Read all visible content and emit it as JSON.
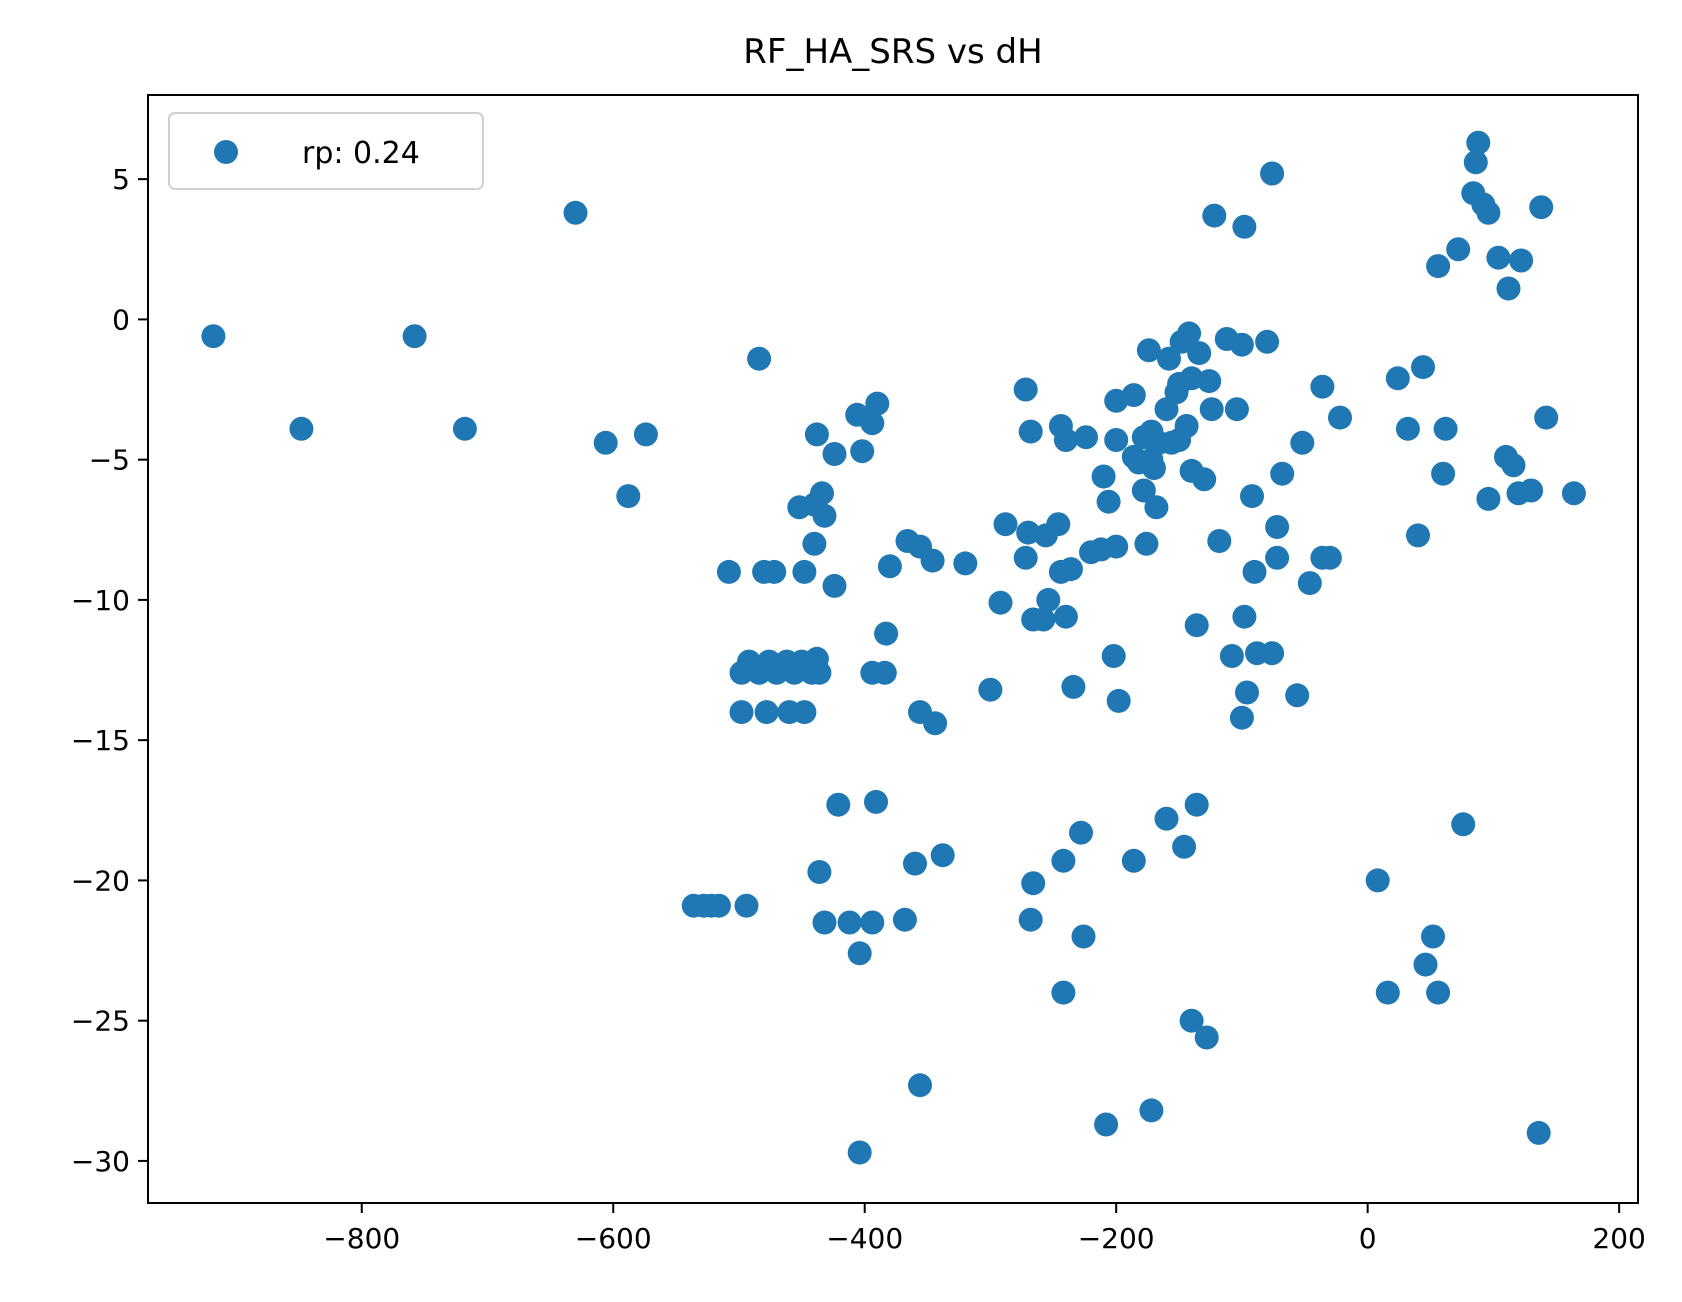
{
  "chart_data": {
    "type": "scatter",
    "title": "RF_HA_SRS vs dH",
    "xlabel": "",
    "ylabel": "",
    "xlim": [
      -970,
      215
    ],
    "ylim": [
      -31.5,
      8.0
    ],
    "xticks": [
      -800,
      -600,
      -400,
      -200,
      0,
      200
    ],
    "xtick_labels": [
      "−800",
      "−600",
      "−400",
      "−200",
      "0",
      "200"
    ],
    "yticks": [
      5,
      0,
      -5,
      -10,
      -15,
      -20,
      -25,
      -30
    ],
    "ytick_labels": [
      "5",
      "0",
      "−5",
      "−10",
      "−15",
      "−20",
      "−25",
      "−30"
    ],
    "grid": false,
    "legend_position": "top-left",
    "series": [
      {
        "name": "rp: 0.24",
        "color": "#1f77b4",
        "points": [
          [
            -918,
            -0.6
          ],
          [
            -848,
            -3.9
          ],
          [
            -758,
            -0.6
          ],
          [
            -718,
            -3.9
          ],
          [
            -630,
            3.8
          ],
          [
            -606,
            -4.4
          ],
          [
            -588,
            -6.3
          ],
          [
            -574,
            -4.1
          ],
          [
            -484,
            -1.4
          ],
          [
            -508,
            -9.0
          ],
          [
            -480,
            -9.0
          ],
          [
            -472,
            -9.0
          ],
          [
            -448,
            -9.0
          ],
          [
            -424,
            -9.5
          ],
          [
            -498,
            -12.6
          ],
          [
            -492,
            -12.2
          ],
          [
            -484,
            -12.6
          ],
          [
            -476,
            -12.2
          ],
          [
            -470,
            -12.6
          ],
          [
            -462,
            -12.2
          ],
          [
            -456,
            -12.6
          ],
          [
            -450,
            -12.2
          ],
          [
            -442,
            -12.6
          ],
          [
            -436,
            -12.6
          ],
          [
            -438,
            -12.1
          ],
          [
            -498,
            -14.0
          ],
          [
            -478,
            -14.0
          ],
          [
            -460,
            -14.0
          ],
          [
            -448,
            -14.0
          ],
          [
            -536,
            -20.9
          ],
          [
            -528,
            -20.9
          ],
          [
            -522,
            -20.9
          ],
          [
            -516,
            -20.9
          ],
          [
            -494,
            -20.9
          ],
          [
            -452,
            -6.7
          ],
          [
            -440,
            -6.6
          ],
          [
            -434,
            -6.2
          ],
          [
            -432,
            -7.0
          ],
          [
            -440,
            -8.0
          ],
          [
            -438,
            -4.1
          ],
          [
            -424,
            -4.8
          ],
          [
            -406,
            -3.4
          ],
          [
            -402,
            -4.7
          ],
          [
            -394,
            -3.7
          ],
          [
            -390,
            -3.0
          ],
          [
            -380,
            -8.8
          ],
          [
            -383,
            -11.2
          ],
          [
            -394,
            -12.6
          ],
          [
            -384,
            -12.6
          ],
          [
            -366,
            -7.9
          ],
          [
            -356,
            -8.1
          ],
          [
            -346,
            -8.6
          ],
          [
            -320,
            -8.7
          ],
          [
            -356,
            -14.0
          ],
          [
            -344,
            -14.4
          ],
          [
            -421,
            -17.3
          ],
          [
            -391,
            -17.2
          ],
          [
            -436,
            -19.7
          ],
          [
            -432,
            -21.5
          ],
          [
            -412,
            -21.5
          ],
          [
            -404,
            -22.6
          ],
          [
            -394,
            -21.5
          ],
          [
            -368,
            -21.4
          ],
          [
            -360,
            -19.4
          ],
          [
            -338,
            -19.1
          ],
          [
            -356,
            -27.3
          ],
          [
            -404,
            -29.7
          ],
          [
            -300,
            -13.2
          ],
          [
            -292,
            -10.1
          ],
          [
            -288,
            -7.3
          ],
          [
            -272,
            -8.5
          ],
          [
            -270,
            -7.6
          ],
          [
            -266,
            -10.7
          ],
          [
            -272,
            -2.5
          ],
          [
            -268,
            -4.0
          ],
          [
            -256,
            -7.7
          ],
          [
            -258,
            -10.7
          ],
          [
            -254,
            -10.0
          ],
          [
            -246,
            -7.3
          ],
          [
            -244,
            -9.0
          ],
          [
            -240,
            -10.6
          ],
          [
            -236,
            -8.9
          ],
          [
            -234,
            -13.1
          ],
          [
            -244,
            -3.8
          ],
          [
            -240,
            -4.3
          ],
          [
            -224,
            -4.2
          ],
          [
            -220,
            -8.3
          ],
          [
            -212,
            -8.2
          ],
          [
            -210,
            -5.6
          ],
          [
            -206,
            -6.5
          ],
          [
            -200,
            -8.1
          ],
          [
            -200,
            -2.9
          ],
          [
            -200,
            -4.3
          ],
          [
            -202,
            -12.0
          ],
          [
            -198,
            -13.6
          ],
          [
            -186,
            -2.7
          ],
          [
            -186,
            -4.9
          ],
          [
            -182,
            -5.1
          ],
          [
            -178,
            -4.2
          ],
          [
            -178,
            -6.1
          ],
          [
            -176,
            -8.0
          ],
          [
            -172,
            -5.0
          ],
          [
            -172,
            -4.0
          ],
          [
            -170,
            -5.3
          ],
          [
            -168,
            -6.7
          ],
          [
            -166,
            -4.4
          ],
          [
            -160,
            -3.2
          ],
          [
            -156,
            -4.4
          ],
          [
            -152,
            -2.6
          ],
          [
            -150,
            -4.3
          ],
          [
            -148,
            -0.8
          ],
          [
            -144,
            -3.8
          ],
          [
            -142,
            -0.5
          ],
          [
            -140,
            -5.4
          ],
          [
            -134,
            -1.2
          ],
          [
            -130,
            -5.7
          ],
          [
            -126,
            -2.2
          ],
          [
            -124,
            -3.2
          ],
          [
            -118,
            -7.9
          ],
          [
            -112,
            -0.7
          ],
          [
            -104,
            -3.2
          ],
          [
            -100,
            -0.9
          ],
          [
            -80,
            -0.8
          ],
          [
            -174,
            -1.1
          ],
          [
            -158,
            -1.4
          ],
          [
            -150,
            -2.3
          ],
          [
            -140,
            -2.1
          ],
          [
            -136,
            -10.9
          ],
          [
            -108,
            -12.0
          ],
          [
            -98,
            -10.6
          ],
          [
            -96,
            -13.3
          ],
          [
            -100,
            -14.2
          ],
          [
            -90,
            -9.0
          ],
          [
            -92,
            -6.3
          ],
          [
            -88,
            -11.9
          ],
          [
            -76,
            -11.9
          ],
          [
            -72,
            -8.5
          ],
          [
            -72,
            -7.4
          ],
          [
            -68,
            -5.5
          ],
          [
            -56,
            -13.4
          ],
          [
            -52,
            -4.4
          ],
          [
            -46,
            -9.4
          ],
          [
            -36,
            -8.5
          ],
          [
            -30,
            -8.5
          ],
          [
            -36,
            -2.4
          ],
          [
            -22,
            -3.5
          ],
          [
            -122,
            3.7
          ],
          [
            -98,
            3.3
          ],
          [
            -76,
            5.2
          ],
          [
            -242,
            -19.3
          ],
          [
            -228,
            -18.3
          ],
          [
            -266,
            -20.1
          ],
          [
            -268,
            -21.4
          ],
          [
            -226,
            -22.0
          ],
          [
            -242,
            -24.0
          ],
          [
            -186,
            -19.3
          ],
          [
            -160,
            -17.8
          ],
          [
            -146,
            -18.8
          ],
          [
            -136,
            -17.3
          ],
          [
            -140,
            -25.0
          ],
          [
            -128,
            -25.6
          ],
          [
            -208,
            -28.7
          ],
          [
            -172,
            -28.2
          ],
          [
            24,
            -2.1
          ],
          [
            32,
            -3.9
          ],
          [
            44,
            -1.7
          ],
          [
            40,
            -7.7
          ],
          [
            56,
            1.9
          ],
          [
            60,
            -5.5
          ],
          [
            62,
            -3.9
          ],
          [
            72,
            2.5
          ],
          [
            76,
            -18.0
          ],
          [
            84,
            4.5
          ],
          [
            86,
            5.6
          ],
          [
            88,
            6.3
          ],
          [
            92,
            4.1
          ],
          [
            96,
            3.8
          ],
          [
            96,
            -6.4
          ],
          [
            104,
            2.2
          ],
          [
            110,
            -4.9
          ],
          [
            112,
            1.1
          ],
          [
            116,
            -5.2
          ],
          [
            120,
            -6.2
          ],
          [
            122,
            2.1
          ],
          [
            130,
            -6.1
          ],
          [
            138,
            4.0
          ],
          [
            142,
            -3.5
          ],
          [
            164,
            -6.2
          ],
          [
            8,
            -20.0
          ],
          [
            16,
            -24.0
          ],
          [
            46,
            -23.0
          ],
          [
            52,
            -22.0
          ],
          [
            56,
            -24.0
          ],
          [
            136,
            -29.0
          ]
        ]
      }
    ]
  }
}
